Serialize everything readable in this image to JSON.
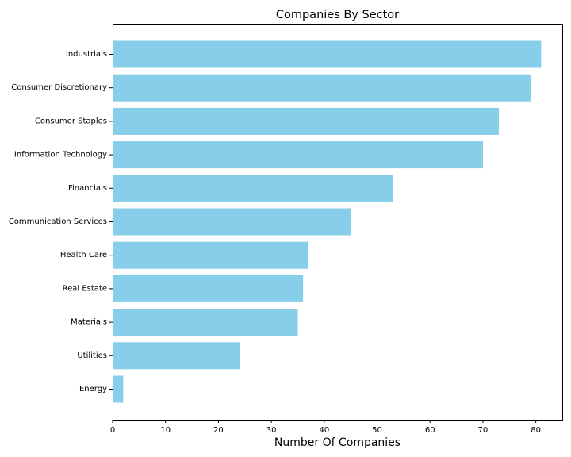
{
  "chart_data": {
    "type": "bar",
    "orientation": "horizontal",
    "title": "Companies By Sector",
    "xlabel": "Number Of Companies",
    "ylabel": "",
    "categories": [
      "Industrials",
      "Consumer Discretionary",
      "Consumer Staples",
      "Information Technology",
      "Financials",
      "Communication Services",
      "Health Care",
      "Real Estate",
      "Materials",
      "Utilities",
      "Energy"
    ],
    "values": [
      81,
      79,
      73,
      70,
      53,
      45,
      37,
      36,
      35,
      24,
      2
    ],
    "xlim": [
      0,
      85
    ],
    "xticks": [
      0,
      10,
      20,
      30,
      40,
      50,
      60,
      70,
      80
    ],
    "grid": false,
    "legend": "none",
    "bar_color": "#87ceeb"
  }
}
